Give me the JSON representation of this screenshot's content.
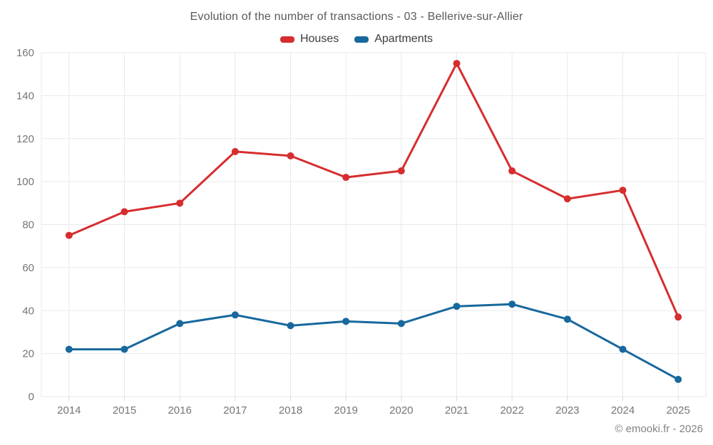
{
  "chart_data": {
    "type": "line",
    "title": "Evolution of the number of transactions - 03 - Bellerive-sur-Allier",
    "categories": [
      "2014",
      "2015",
      "2016",
      "2017",
      "2018",
      "2019",
      "2020",
      "2021",
      "2022",
      "2023",
      "2024",
      "2025"
    ],
    "series": [
      {
        "name": "Houses",
        "color": "#d62d2e",
        "values": [
          75,
          86,
          90,
          114,
          112,
          102,
          105,
          155,
          105,
          92,
          96,
          37
        ]
      },
      {
        "name": "Apartments",
        "color": "#17689d",
        "values": [
          22,
          22,
          34,
          38,
          33,
          35,
          34,
          42,
          43,
          36,
          22,
          8
        ]
      }
    ],
    "ylim": [
      0,
      160
    ],
    "ytick_step": 20,
    "grid": true,
    "legend_position": "top"
  },
  "footer": {
    "copyright": "© emooki.fr - 2026"
  },
  "colors": {
    "grid": "#e9e9e9",
    "axis_tick": "#d9d9d9",
    "tick_label": "#757575",
    "title_text": "#595959",
    "legend_text": "#3c3c3c",
    "footer_text": "#828282"
  }
}
